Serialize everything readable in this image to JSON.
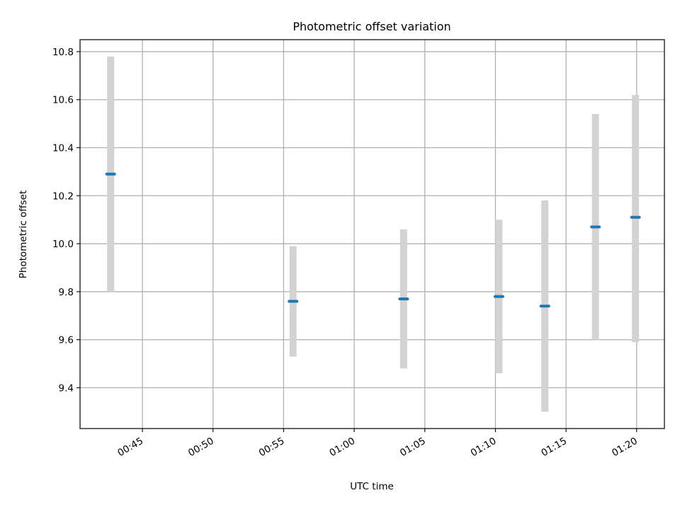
{
  "chart_data": {
    "type": "scatter",
    "title": "Photometric offset variation",
    "xlabel": "UTC time",
    "ylabel": "Photometric offset",
    "x_tick_labels": [
      "00:45",
      "00:50",
      "00:55",
      "01:00",
      "01:05",
      "01:10",
      "01:15",
      "01:20"
    ],
    "y_ticks": [
      9.4,
      9.6,
      9.8,
      10.0,
      10.2,
      10.4,
      10.6,
      10.8
    ],
    "y_tick_labels": [
      "9.4",
      "9.6",
      "9.8",
      "10.0",
      "10.2",
      "10.4",
      "10.6",
      "10.8"
    ],
    "xlim": [
      "00:40:35",
      "01:21:58"
    ],
    "ylim": [
      9.23,
      10.85
    ],
    "grid": true,
    "series": [
      {
        "points": [
          {
            "x": "00:42:45",
            "y": 10.29,
            "ylow": 9.8,
            "yhigh": 10.78
          },
          {
            "x": "00:55:40",
            "y": 9.76,
            "ylow": 9.53,
            "yhigh": 9.99
          },
          {
            "x": "01:03:30",
            "y": 9.77,
            "ylow": 9.48,
            "yhigh": 10.06
          },
          {
            "x": "01:10:15",
            "y": 9.78,
            "ylow": 9.46,
            "yhigh": 10.1
          },
          {
            "x": "01:13:30",
            "y": 9.74,
            "ylow": 9.3,
            "yhigh": 10.18
          },
          {
            "x": "01:17:05",
            "y": 10.07,
            "ylow": 9.6,
            "yhigh": 10.54
          },
          {
            "x": "01:19:55",
            "y": 10.11,
            "ylow": 9.59,
            "yhigh": 10.62
          }
        ]
      }
    ],
    "colors": {
      "marker": "#1f77b4",
      "errorbar": "#d3d3d3",
      "grid": "#b0b0b0",
      "axes": "#000000"
    }
  }
}
